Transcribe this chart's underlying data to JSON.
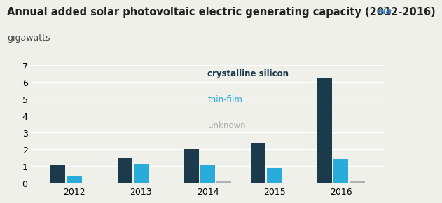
{
  "title": "Annual added solar photovoltaic electric generating capacity (2012-2016)",
  "subtitle": "gigawatts",
  "years": [
    2012,
    2013,
    2014,
    2015,
    2016
  ],
  "crystalline_silicon": [
    1.05,
    1.5,
    2.0,
    2.4,
    6.2
  ],
  "thin_film": [
    0.45,
    1.15,
    1.1,
    0.9,
    1.45
  ],
  "unknown": [
    0.0,
    0.0,
    0.1,
    0.0,
    0.15
  ],
  "color_crystalline": "#1b3a4b",
  "color_thin_film": "#29acd9",
  "color_unknown": "#b0b0b0",
  "color_background": "#f0f0eb",
  "color_grid": "#ffffff",
  "ylim": [
    0,
    7
  ],
  "yticks": [
    0,
    1,
    2,
    3,
    4,
    5,
    6,
    7
  ],
  "legend_labels": [
    "crystalline silicon",
    "thin-film",
    "unknown"
  ],
  "legend_colors": [
    "#1b3a4b",
    "#29acd9",
    "#b0b0b0"
  ],
  "title_fontsize": 10.5,
  "subtitle_fontsize": 9,
  "tick_fontsize": 9,
  "bar_width": 0.22,
  "bar_gap": 0.025
}
